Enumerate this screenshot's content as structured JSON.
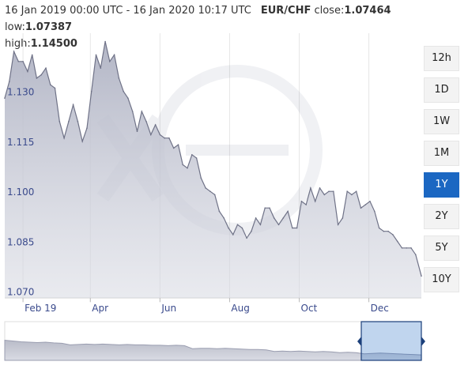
{
  "header": {
    "date_range": "16 Jan 2019 00:00 UTC - 16 Jan 2020 10:17 UTC",
    "pair": "EUR/CHF",
    "close_label": "close:",
    "close_value": "1.07464",
    "low_label": "low:",
    "low_value": "1.07387",
    "high_label": "high:",
    "high_value": "1.14500"
  },
  "range_buttons": [
    "12h",
    "1D",
    "1W",
    "1M",
    "1Y",
    "2Y",
    "5Y",
    "10Y"
  ],
  "active_range": "1Y",
  "colors": {
    "accent": "#1b67c2",
    "series_line": "#6f7287",
    "series_fill": "#b9bccb",
    "axis_text": "#3a4a8c",
    "grid": "#e6e6e6"
  },
  "chart_data": {
    "type": "area",
    "x_start": "2019-01-16",
    "x_end": "2020-01-16",
    "xlabel": "",
    "ylabel": "",
    "ylim": [
      1.068,
      1.1475
    ],
    "y_ticks": [
      "1.130",
      "1.115",
      "1.100",
      "1.085",
      "1.070"
    ],
    "x_ticks": [
      {
        "label": "Feb 19",
        "date": "2019-02-01"
      },
      {
        "label": "Apr",
        "date": "2019-04-01"
      },
      {
        "label": "Jun",
        "date": "2019-06-01"
      },
      {
        "label": "Aug",
        "date": "2019-08-01"
      },
      {
        "label": "Oct",
        "date": "2019-10-01"
      },
      {
        "label": "Dec",
        "date": "2019-12-01"
      }
    ],
    "grid": "vertical",
    "watermark": "xe",
    "series": [
      {
        "x": [
          "2019-01-16",
          "2019-01-20",
          "2019-01-24",
          "2019-01-28",
          "2019-02-01",
          "2019-02-05",
          "2019-02-09",
          "2019-02-13",
          "2019-02-17",
          "2019-02-21",
          "2019-02-25",
          "2019-03-01",
          "2019-03-05",
          "2019-03-09",
          "2019-03-13",
          "2019-03-17",
          "2019-03-21",
          "2019-03-25",
          "2019-03-29",
          "2019-04-02",
          "2019-04-06",
          "2019-04-10",
          "2019-04-14",
          "2019-04-18",
          "2019-04-22",
          "2019-04-26",
          "2019-04-30",
          "2019-05-04",
          "2019-05-08",
          "2019-05-12",
          "2019-05-16",
          "2019-05-20",
          "2019-05-24",
          "2019-05-28",
          "2019-06-01",
          "2019-06-05",
          "2019-06-09",
          "2019-06-13",
          "2019-06-17",
          "2019-06-21",
          "2019-06-25",
          "2019-06-29",
          "2019-07-03",
          "2019-07-07",
          "2019-07-11",
          "2019-07-15",
          "2019-07-19",
          "2019-07-23",
          "2019-07-27",
          "2019-07-31",
          "2019-08-04",
          "2019-08-08",
          "2019-08-12",
          "2019-08-16",
          "2019-08-20",
          "2019-08-24",
          "2019-08-28",
          "2019-09-01",
          "2019-09-05",
          "2019-09-09",
          "2019-09-13",
          "2019-09-17",
          "2019-09-21",
          "2019-09-25",
          "2019-09-29",
          "2019-10-03",
          "2019-10-07",
          "2019-10-11",
          "2019-10-15",
          "2019-10-19",
          "2019-10-23",
          "2019-10-27",
          "2019-10-31",
          "2019-11-04",
          "2019-11-08",
          "2019-11-12",
          "2019-11-16",
          "2019-11-20",
          "2019-11-24",
          "2019-11-28",
          "2019-12-02",
          "2019-12-06",
          "2019-12-10",
          "2019-12-14",
          "2019-12-18",
          "2019-12-22",
          "2019-12-26",
          "2019-12-30",
          "2020-01-03",
          "2020-01-07",
          "2020-01-11",
          "2020-01-16"
        ],
        "values": [
          1.128,
          1.133,
          1.142,
          1.139,
          1.139,
          1.136,
          1.141,
          1.134,
          1.135,
          1.137,
          1.132,
          1.131,
          1.121,
          1.116,
          1.121,
          1.126,
          1.121,
          1.115,
          1.119,
          1.13,
          1.141,
          1.137,
          1.145,
          1.139,
          1.141,
          1.134,
          1.13,
          1.128,
          1.124,
          1.118,
          1.124,
          1.121,
          1.117,
          1.12,
          1.117,
          1.116,
          1.116,
          1.113,
          1.114,
          1.108,
          1.107,
          1.111,
          1.11,
          1.104,
          1.101,
          1.1,
          1.099,
          1.094,
          1.092,
          1.089,
          1.087,
          1.09,
          1.089,
          1.086,
          1.088,
          1.092,
          1.09,
          1.095,
          1.095,
          1.092,
          1.09,
          1.092,
          1.094,
          1.089,
          1.089,
          1.097,
          1.096,
          1.101,
          1.097,
          1.101,
          1.099,
          1.1,
          1.1,
          1.09,
          1.092,
          1.1,
          1.099,
          1.1,
          1.095,
          1.096,
          1.097,
          1.094,
          1.089,
          1.088,
          1.088,
          1.087,
          1.085,
          1.083,
          1.083,
          1.083,
          1.081,
          1.0746
        ]
      }
    ]
  },
  "navigator_data": {
    "values": [
      0.52,
      0.5,
      0.48,
      0.47,
      0.46,
      0.47,
      0.45,
      0.44,
      0.4,
      0.41,
      0.42,
      0.41,
      0.42,
      0.41,
      0.4,
      0.41,
      0.4,
      0.4,
      0.39,
      0.39,
      0.38,
      0.39,
      0.38,
      0.3,
      0.31,
      0.31,
      0.3,
      0.31,
      0.3,
      0.29,
      0.28,
      0.28,
      0.27,
      0.23,
      0.24,
      0.23,
      0.24,
      0.23,
      0.22,
      0.23,
      0.22,
      0.2,
      0.21,
      0.2,
      0.17,
      0.18,
      0.19,
      0.18,
      0.17,
      0.16,
      0.15,
      0.14
    ]
  }
}
